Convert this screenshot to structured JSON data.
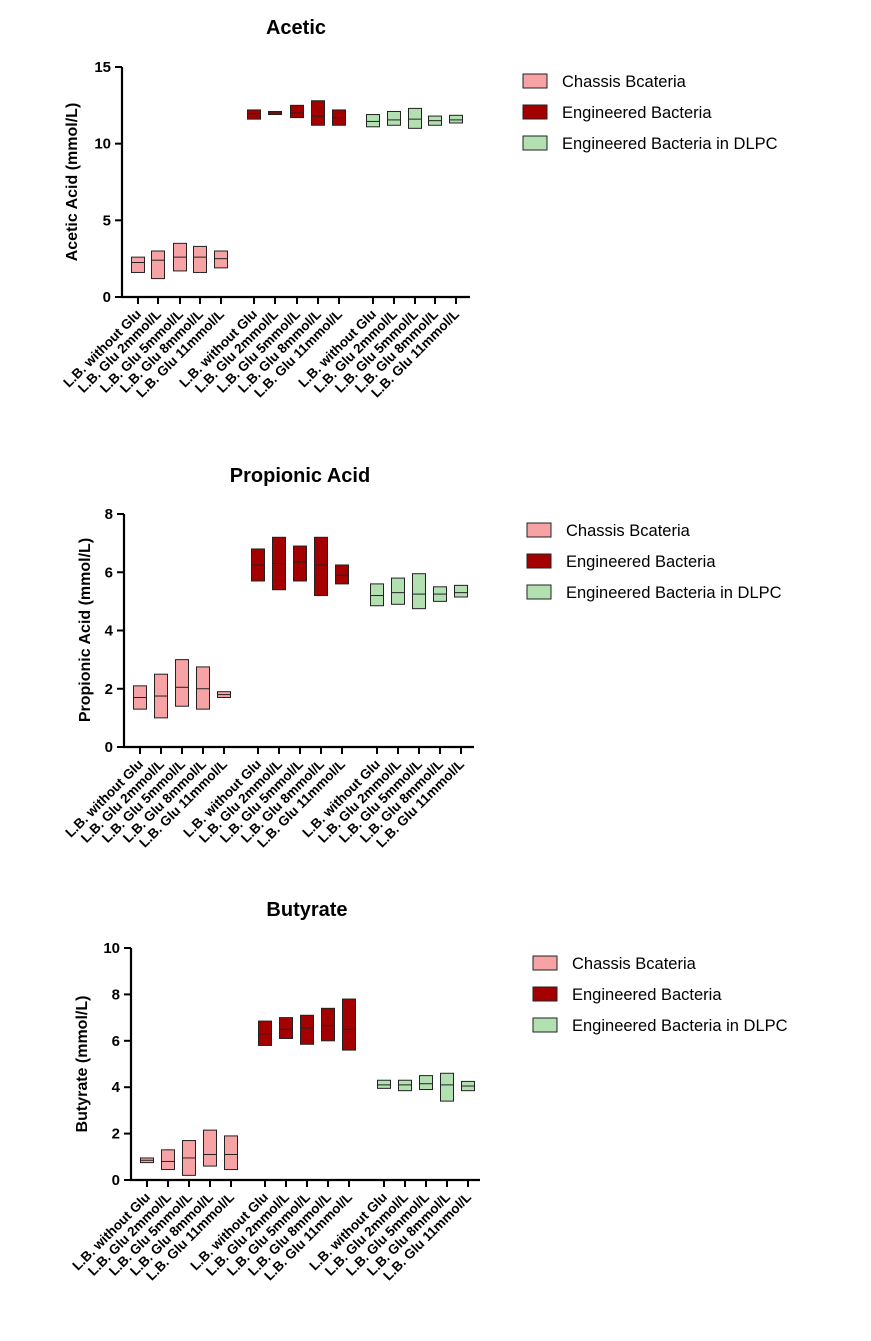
{
  "chart_data": [
    {
      "type": "box",
      "title": "Acetic",
      "ylabel": "Acetic Acid (mmol/L)",
      "ylim": [
        0,
        15
      ],
      "yticks": [
        0,
        5,
        10,
        15
      ],
      "categories": [
        "L.B. without Glu",
        "L.B. Glu 2mmol/L",
        "L.B. Glu 5mmol/L",
        "L.B. Glu 8mmol/L",
        "L.B. Glu 11mmol/L"
      ],
      "legend_position": "right",
      "series": [
        {
          "name": "Chassis Bcateria",
          "color": "#f7a3a6",
          "boxes": [
            [
              1.6,
              2.25,
              2.6
            ],
            [
              1.2,
              2.4,
              3.0
            ],
            [
              1.7,
              2.6,
              3.5
            ],
            [
              1.6,
              2.6,
              3.3
            ],
            [
              1.9,
              2.5,
              3.0
            ]
          ]
        },
        {
          "name": "Engineered Bacteria",
          "color": "#a50000",
          "boxes": [
            [
              11.6,
              11.95,
              12.2
            ],
            [
              11.9,
              12.0,
              12.1
            ],
            [
              11.7,
              12.0,
              12.5
            ],
            [
              11.2,
              11.8,
              12.8
            ],
            [
              11.2,
              11.7,
              12.2
            ]
          ]
        },
        {
          "name": "Engineered Bacteria in DLPC",
          "color": "#b2e0b0",
          "boxes": [
            [
              11.1,
              11.45,
              11.9
            ],
            [
              11.2,
              11.55,
              12.1
            ],
            [
              11.0,
              11.6,
              12.3
            ],
            [
              11.2,
              11.5,
              11.8
            ],
            [
              11.35,
              11.55,
              11.85
            ]
          ]
        }
      ]
    },
    {
      "type": "box",
      "title": "Propionic Acid",
      "ylabel": "Propionic Acid (mmol/L)",
      "ylim": [
        0,
        8
      ],
      "yticks": [
        0,
        2,
        4,
        6,
        8
      ],
      "categories": [
        "L.B. without Glu",
        "L.B. Glu 2mmol/L",
        "L.B. Glu 5mmol/L",
        "L.B. Glu 8mmol/L",
        "L.B. Glu 11mmol/L"
      ],
      "legend_position": "right",
      "series": [
        {
          "name": "Chassis Bcateria",
          "color": "#f7a3a6",
          "boxes": [
            [
              1.3,
              1.7,
              2.1
            ],
            [
              1.0,
              1.75,
              2.5
            ],
            [
              1.4,
              2.05,
              3.0
            ],
            [
              1.3,
              2.0,
              2.75
            ],
            [
              1.7,
              1.8,
              1.9
            ]
          ]
        },
        {
          "name": "Engineered Bacteria",
          "color": "#a50000",
          "boxes": [
            [
              5.7,
              6.25,
              6.8
            ],
            [
              5.4,
              6.3,
              7.2
            ],
            [
              5.7,
              6.35,
              6.9
            ],
            [
              5.2,
              6.25,
              7.2
            ],
            [
              5.6,
              5.9,
              6.25
            ]
          ]
        },
        {
          "name": "Engineered Bacteria in DLPC",
          "color": "#b2e0b0",
          "boxes": [
            [
              4.85,
              5.2,
              5.6
            ],
            [
              4.9,
              5.3,
              5.8
            ],
            [
              4.75,
              5.25,
              5.95
            ],
            [
              5.0,
              5.25,
              5.5
            ],
            [
              5.15,
              5.3,
              5.55
            ]
          ]
        }
      ]
    },
    {
      "type": "box",
      "title": "Butyrate",
      "ylabel": "Butyrate (mmol/L)",
      "ylim": [
        0,
        10
      ],
      "yticks": [
        0,
        2,
        4,
        6,
        8,
        10
      ],
      "categories": [
        "L.B. without Glu",
        "L.B. Glu 2mmol/L",
        "L.B. Glu 5mmol/L",
        "L.B. Glu 8mmol/L",
        "L.B. Glu 11mmol/L"
      ],
      "legend_position": "right",
      "series": [
        {
          "name": "Chassis Bcateria",
          "color": "#f7a3a6",
          "boxes": [
            [
              0.75,
              0.85,
              0.95
            ],
            [
              0.45,
              0.8,
              1.3
            ],
            [
              0.2,
              0.95,
              1.7
            ],
            [
              0.6,
              1.1,
              2.15
            ],
            [
              0.45,
              1.1,
              1.9
            ]
          ]
        },
        {
          "name": "Engineered Bacteria",
          "color": "#a50000",
          "boxes": [
            [
              5.8,
              6.3,
              6.85
            ],
            [
              6.1,
              6.5,
              7.0
            ],
            [
              5.85,
              6.55,
              7.1
            ],
            [
              6.0,
              6.65,
              7.4
            ],
            [
              5.6,
              6.5,
              7.8
            ]
          ]
        },
        {
          "name": "Engineered Bacteria in DLPC",
          "color": "#b2e0b0",
          "boxes": [
            [
              3.95,
              4.1,
              4.3
            ],
            [
              3.85,
              4.1,
              4.3
            ],
            [
              3.9,
              4.15,
              4.5
            ],
            [
              3.4,
              4.1,
              4.6
            ],
            [
              3.85,
              4.05,
              4.25
            ]
          ]
        }
      ]
    }
  ]
}
